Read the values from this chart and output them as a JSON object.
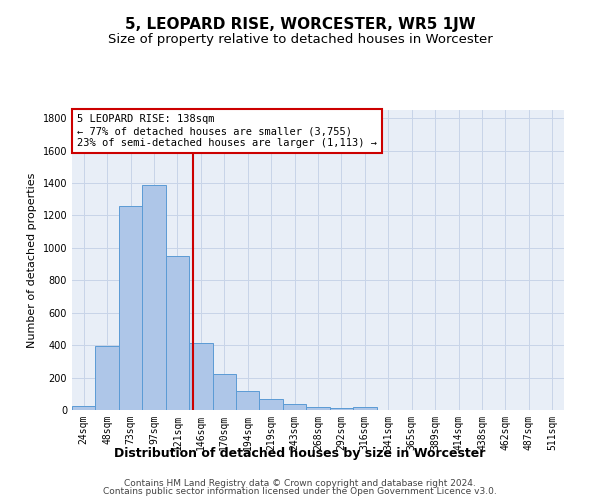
{
  "title": "5, LEOPARD RISE, WORCESTER, WR5 1JW",
  "subtitle": "Size of property relative to detached houses in Worcester",
  "xlabel": "Distribution of detached houses by size in Worcester",
  "ylabel": "Number of detached properties",
  "footer_line1": "Contains HM Land Registry data © Crown copyright and database right 2024.",
  "footer_line2": "Contains public sector information licensed under the Open Government Licence v3.0.",
  "bar_labels": [
    "24sqm",
    "48sqm",
    "73sqm",
    "97sqm",
    "121sqm",
    "146sqm",
    "170sqm",
    "194sqm",
    "219sqm",
    "243sqm",
    "268sqm",
    "292sqm",
    "316sqm",
    "341sqm",
    "365sqm",
    "389sqm",
    "414sqm",
    "438sqm",
    "462sqm",
    "487sqm",
    "511sqm"
  ],
  "bar_values": [
    25,
    395,
    1260,
    1390,
    950,
    415,
    225,
    115,
    65,
    40,
    20,
    15,
    20,
    0,
    0,
    0,
    0,
    0,
    0,
    0,
    0
  ],
  "bar_color": "#aec6e8",
  "bar_edge_color": "#5b9bd5",
  "grid_color": "#c8d4e8",
  "background_color": "#e8eef7",
  "vline_color": "#cc0000",
  "annotation_text": "5 LEOPARD RISE: 138sqm\n← 77% of detached houses are smaller (3,755)\n23% of semi-detached houses are larger (1,113) →",
  "annotation_box_color": "#cc0000",
  "ylim": [
    0,
    1850
  ],
  "yticks": [
    0,
    200,
    400,
    600,
    800,
    1000,
    1200,
    1400,
    1600,
    1800
  ],
  "title_fontsize": 11,
  "subtitle_fontsize": 9.5,
  "xlabel_fontsize": 9,
  "ylabel_fontsize": 8,
  "tick_fontsize": 7,
  "annotation_fontsize": 7.5,
  "footer_fontsize": 6.5
}
